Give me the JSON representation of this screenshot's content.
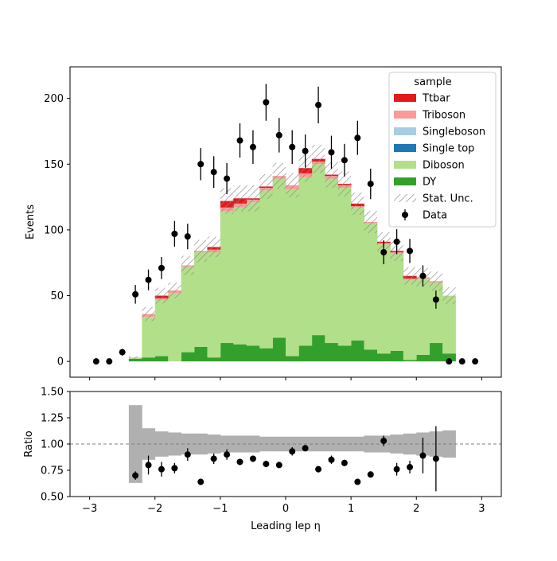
{
  "chart_data": [
    {
      "type": "bar",
      "stacked": true,
      "x_bin_edges": [
        -3.0,
        -2.8,
        -2.6,
        -2.4,
        -2.2,
        -2.0,
        -1.8,
        -1.6,
        -1.4,
        -1.2,
        -1.0,
        -0.8,
        -0.6,
        -0.4,
        -0.2,
        0.0,
        0.2,
        0.4,
        0.6,
        0.8,
        1.0,
        1.2,
        1.4,
        1.6,
        1.8,
        2.0,
        2.2,
        2.4,
        2.6,
        2.8,
        3.0
      ],
      "xlim": [
        -3.3,
        3.3
      ],
      "ylim": [
        -12,
        224
      ],
      "ylabel": "Events",
      "y_ticks": [
        0,
        50,
        100,
        150,
        200
      ],
      "legend": {
        "title": "sample",
        "placement": "top-right"
      },
      "series": [
        {
          "name": "DY",
          "color": "#33a02c",
          "values": [
            0,
            0,
            0,
            2,
            3,
            4,
            0,
            7,
            11,
            3,
            14,
            13,
            12,
            10,
            18,
            4,
            12,
            20,
            14,
            12,
            16,
            9,
            6,
            8,
            1,
            5,
            14,
            6,
            0,
            0
          ]
        },
        {
          "name": "Diboson",
          "color": "#b2df8a",
          "values": [
            0,
            0,
            0,
            1,
            31,
            43,
            52,
            65,
            72,
            80,
            100,
            104,
            109,
            120,
            121,
            127,
            128,
            130,
            125,
            120,
            101,
            96,
            83,
            74,
            61,
            58,
            46,
            44,
            0,
            0
          ]
        },
        {
          "name": "Single top",
          "color": "#1f78b4",
          "values": [
            0,
            0,
            0,
            0,
            0,
            0,
            0,
            0,
            0,
            0,
            0,
            0,
            0,
            0,
            0,
            0,
            0,
            0,
            0,
            0,
            0,
            0,
            0,
            0,
            0,
            0,
            0,
            0,
            0,
            0
          ]
        },
        {
          "name": "Singleboson",
          "color": "#a6cee3",
          "values": [
            0,
            0,
            0,
            0,
            0,
            0,
            0,
            0,
            0,
            0,
            0,
            0,
            0,
            0,
            0,
            0,
            0,
            0,
            0,
            0,
            0,
            0,
            0,
            0,
            0,
            0,
            0,
            0,
            0,
            0
          ]
        },
        {
          "name": "Triboson",
          "color": "#fb9a99",
          "values": [
            0,
            0,
            0,
            0,
            2,
            1,
            2,
            1,
            1,
            2,
            3,
            3,
            2,
            2,
            2,
            3,
            3,
            2,
            2,
            2,
            1,
            1,
            1,
            1,
            1,
            1,
            1,
            0,
            0,
            0
          ]
        },
        {
          "name": "Ttbar",
          "color": "#e31a1c",
          "values": [
            0,
            0,
            0,
            0,
            0,
            2,
            0,
            0,
            0,
            2,
            5,
            4,
            1,
            1,
            0,
            0,
            4,
            2,
            1,
            1,
            2,
            0,
            1,
            1,
            2,
            0,
            0,
            0,
            0,
            0
          ]
        }
      ],
      "stat_unc": {
        "name": "Stat. Unc.",
        "rel": [
          0,
          0,
          0,
          0.37,
          0.15,
          0.12,
          0.11,
          0.1,
          0.1,
          0.09,
          0.08,
          0.08,
          0.08,
          0.07,
          0.07,
          0.07,
          0.07,
          0.07,
          0.07,
          0.07,
          0.07,
          0.08,
          0.08,
          0.09,
          0.1,
          0.11,
          0.12,
          0.13,
          0,
          0
        ]
      },
      "data_points": {
        "name": "Data",
        "x": [
          -2.9,
          -2.7,
          -2.5,
          -2.3,
          -2.1,
          -1.9,
          -1.7,
          -1.5,
          -1.3,
          -1.1,
          -0.9,
          -0.7,
          -0.5,
          -0.3,
          -0.1,
          0.1,
          0.3,
          0.5,
          0.7,
          0.9,
          1.1,
          1.3,
          1.5,
          1.7,
          1.9,
          2.1,
          2.3,
          2.5,
          2.7,
          2.9
        ],
        "y": [
          0,
          0,
          7,
          51,
          62,
          71,
          97,
          95,
          150,
          144,
          139,
          168,
          163,
          197,
          172,
          163,
          160,
          195,
          159,
          153,
          170,
          135,
          83,
          91,
          84,
          65,
          47,
          0,
          0,
          0
        ],
        "err": [
          0,
          0,
          2.6,
          7.1,
          7.9,
          8.4,
          9.8,
          9.7,
          12.2,
          12.0,
          11.8,
          13.0,
          12.8,
          14.0,
          13.1,
          12.8,
          12.6,
          14.0,
          12.6,
          12.4,
          13.0,
          11.6,
          9.1,
          9.5,
          9.2,
          8.1,
          6.9,
          0,
          0,
          0
        ]
      }
    },
    {
      "type": "scatter",
      "ylabel": "Ratio",
      "xlabel": "Leading lep η",
      "xlim": [
        -3.3,
        3.3
      ],
      "ylim": [
        0.5,
        1.5
      ],
      "x_ticks": [
        -3,
        -2,
        -1,
        0,
        1,
        2,
        3
      ],
      "y_ticks": [
        "0.50",
        "0.75",
        "1.00",
        "1.25",
        "1.50"
      ],
      "reference_line": 1.0,
      "points": {
        "x": [
          -2.3,
          -2.1,
          -1.9,
          -1.7,
          -1.5,
          -1.3,
          -1.1,
          -0.9,
          -0.7,
          -0.5,
          -0.3,
          -0.1,
          0.1,
          0.3,
          0.5,
          0.7,
          0.9,
          1.1,
          1.3,
          1.5,
          1.7,
          1.9,
          2.1,
          2.3
        ],
        "y": [
          0.7,
          0.8,
          0.76,
          0.77,
          0.9,
          0.64,
          0.86,
          0.9,
          0.83,
          0.86,
          0.81,
          0.8,
          0.93,
          0.96,
          0.76,
          0.85,
          0.82,
          0.64,
          0.71,
          1.03,
          0.76,
          0.78,
          0.89,
          0.86
        ],
        "err": [
          0.04,
          0.09,
          0.07,
          0.05,
          0.06,
          0.03,
          0.05,
          0.05,
          0.03,
          0.03,
          0.03,
          0.02,
          0.04,
          0.03,
          0.03,
          0.04,
          0.03,
          0.02,
          0.03,
          0.05,
          0.06,
          0.06,
          0.17,
          0.31
        ]
      }
    }
  ]
}
